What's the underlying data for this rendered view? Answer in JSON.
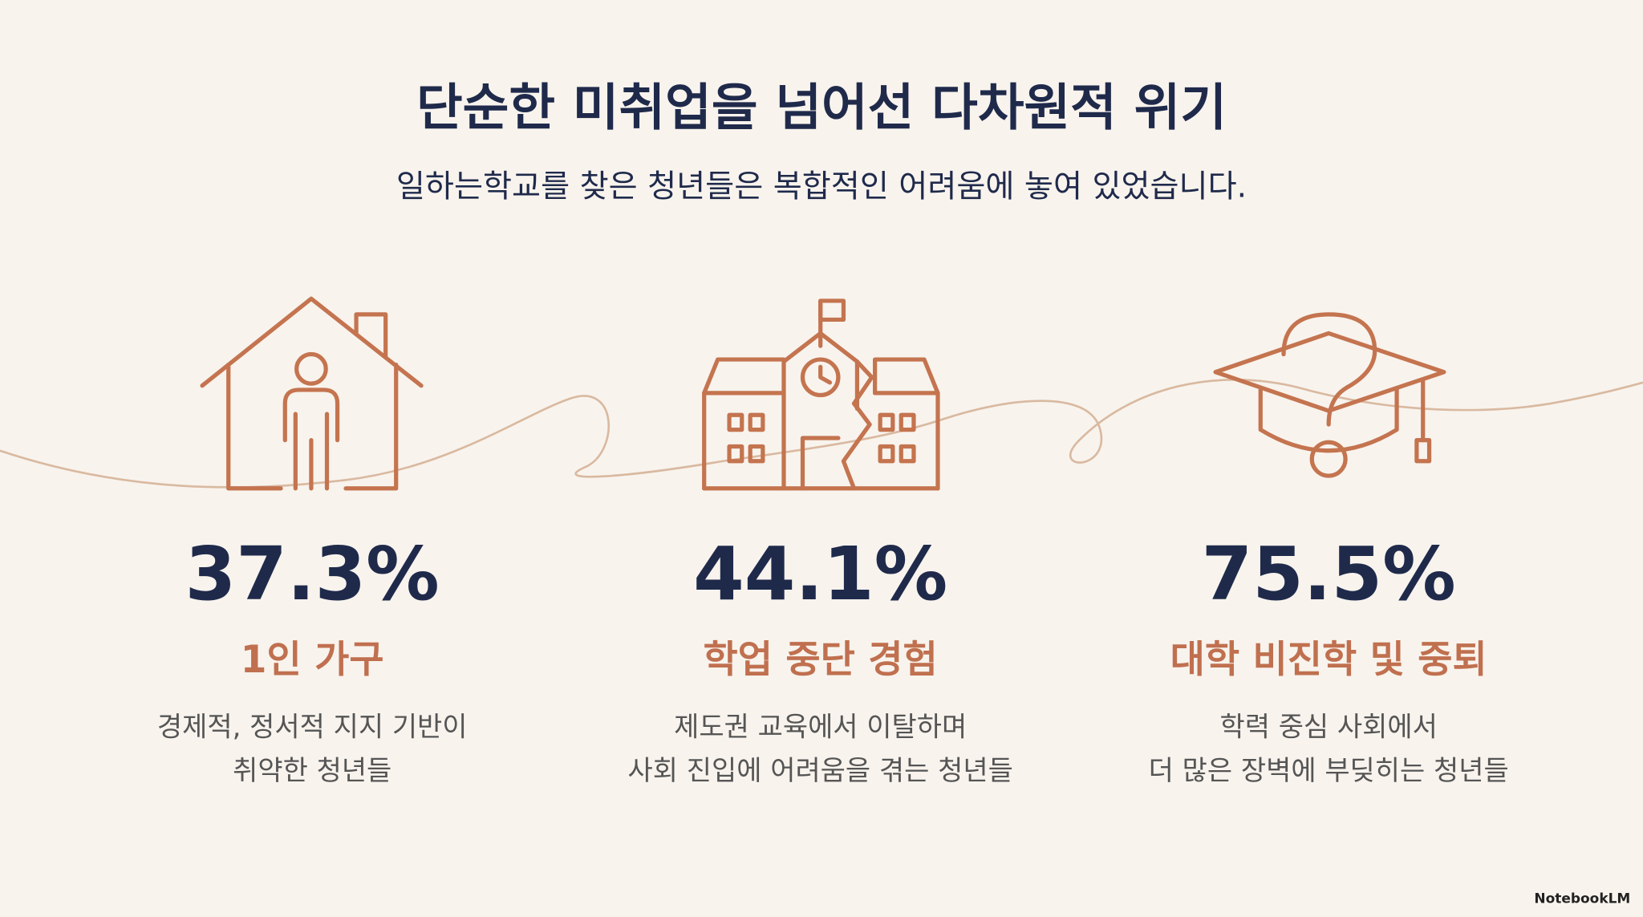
{
  "header": {
    "title": "단순한 미취업을 넘어선 다차원적 위기",
    "subtitle": "일하는학교를 찾은 청년들은 복합적인 어려움에 놓여 있었습니다."
  },
  "stats": [
    {
      "value": "37.3%",
      "label": "1인 가구",
      "description": [
        "경제적, 정서적 지지 기반이",
        "취약한 청년들"
      ]
    },
    {
      "value": "44.1%",
      "label": "학업 중단 경험",
      "description": [
        "제도권 교육에서 이탈하며",
        "사회 진입에 어려움을 겪는 청년들"
      ]
    },
    {
      "value": "75.5%",
      "label": "대학 비진학 및 중퇴",
      "description": [
        "학력 중심 사회에서",
        "더 많은 장벽에 부딪히는 청년들"
      ]
    }
  ],
  "footer": {
    "brand": "NotebookLM"
  }
}
